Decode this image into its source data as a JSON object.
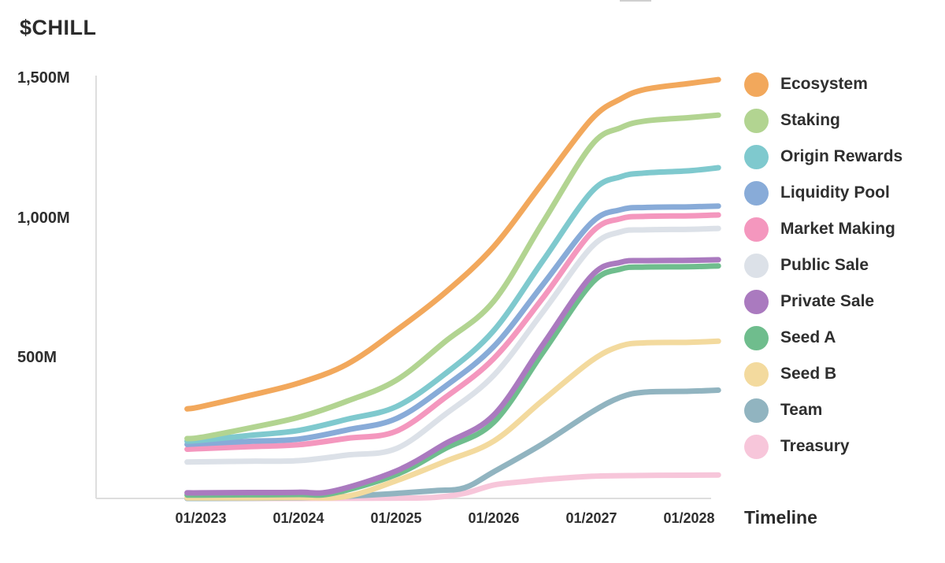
{
  "header": {
    "title": "$CHILL"
  },
  "chart_data": {
    "type": "line",
    "title": "$CHILL",
    "subtitle": "",
    "xlabel": "Timeline",
    "ylabel": "",
    "unit": "millions of tokens",
    "grid": false,
    "legend_position": "right",
    "ylim": [
      0,
      1560
    ],
    "xlim": [
      2022.86,
      2028.3
    ],
    "y_ticks": [
      {
        "value": 1500,
        "label": "1,500M"
      },
      {
        "value": 1000,
        "label": "1,000M"
      },
      {
        "value": 500,
        "label": "500M"
      }
    ],
    "x_ticks": [
      {
        "year": 2023,
        "label": "01/2023"
      },
      {
        "year": 2024,
        "label": "01/2024"
      },
      {
        "year": 2025,
        "label": "01/2025"
      },
      {
        "year": 2026,
        "label": "01/2026"
      },
      {
        "year": 2027,
        "label": "01/2027"
      },
      {
        "year": 2028,
        "label": "01/2028"
      }
    ],
    "series": [
      {
        "name": "Ecosystem",
        "color": "#F2A85C",
        "points": [
          [
            2022.86,
            320
          ],
          [
            2023,
            328
          ],
          [
            2023.5,
            368
          ],
          [
            2024,
            412
          ],
          [
            2024.5,
            480
          ],
          [
            2025,
            600
          ],
          [
            2025.5,
            735
          ],
          [
            2026,
            900
          ],
          [
            2026.5,
            1128
          ],
          [
            2027,
            1355
          ],
          [
            2027.3,
            1428
          ],
          [
            2027.55,
            1462
          ],
          [
            2028,
            1483
          ],
          [
            2028.3,
            1497
          ]
        ]
      },
      {
        "name": "Staking",
        "color": "#B2D491",
        "points": [
          [
            2022.86,
            214
          ],
          [
            2023,
            218
          ],
          [
            2023.5,
            252
          ],
          [
            2024,
            290
          ],
          [
            2024.5,
            348
          ],
          [
            2025,
            422
          ],
          [
            2025.5,
            560
          ],
          [
            2026,
            705
          ],
          [
            2026.5,
            985
          ],
          [
            2027,
            1262
          ],
          [
            2027.3,
            1325
          ],
          [
            2027.55,
            1349
          ],
          [
            2028,
            1361
          ],
          [
            2028.3,
            1370
          ]
        ]
      },
      {
        "name": "Origin Rewards",
        "color": "#7FC9CE",
        "points": [
          [
            2022.86,
            205
          ],
          [
            2023,
            208
          ],
          [
            2023.5,
            225
          ],
          [
            2024,
            243
          ],
          [
            2024.5,
            283
          ],
          [
            2025,
            328
          ],
          [
            2025.5,
            445
          ],
          [
            2026,
            600
          ],
          [
            2026.5,
            848
          ],
          [
            2027,
            1095
          ],
          [
            2027.3,
            1150
          ],
          [
            2027.55,
            1163
          ],
          [
            2028,
            1171
          ],
          [
            2028.3,
            1182
          ]
        ]
      },
      {
        "name": "Liquidity Pool",
        "color": "#88ABD8",
        "points": [
          [
            2022.86,
            193
          ],
          [
            2023,
            196
          ],
          [
            2023.5,
            204
          ],
          [
            2024,
            212
          ],
          [
            2024.5,
            245
          ],
          [
            2025,
            285
          ],
          [
            2025.5,
            400
          ],
          [
            2026,
            543
          ],
          [
            2026.5,
            763
          ],
          [
            2027,
            985
          ],
          [
            2027.3,
            1032
          ],
          [
            2027.55,
            1040
          ],
          [
            2028,
            1042
          ],
          [
            2028.3,
            1045
          ]
        ]
      },
      {
        "name": "Market Making",
        "color": "#F497BE",
        "points": [
          [
            2022.86,
            176
          ],
          [
            2023,
            178
          ],
          [
            2023.5,
            185
          ],
          [
            2024,
            192
          ],
          [
            2024.5,
            215
          ],
          [
            2025,
            240
          ],
          [
            2025.5,
            360
          ],
          [
            2026,
            500
          ],
          [
            2026.5,
            715
          ],
          [
            2027,
            950
          ],
          [
            2027.3,
            1000
          ],
          [
            2027.55,
            1008
          ],
          [
            2028,
            1010
          ],
          [
            2028.3,
            1013
          ]
        ]
      },
      {
        "name": "Public Sale",
        "color": "#DCE1E8",
        "points": [
          [
            2022.86,
            130
          ],
          [
            2023,
            131
          ],
          [
            2023.5,
            133
          ],
          [
            2024,
            135
          ],
          [
            2024.5,
            155
          ],
          [
            2025,
            178
          ],
          [
            2025.5,
            300
          ],
          [
            2026,
            440
          ],
          [
            2026.5,
            665
          ],
          [
            2027,
            898
          ],
          [
            2027.3,
            953
          ],
          [
            2027.55,
            960
          ],
          [
            2028,
            962
          ],
          [
            2028.3,
            965
          ]
        ]
      },
      {
        "name": "Private Sale",
        "color": "#AA7ABF",
        "points": [
          [
            2022.86,
            20
          ],
          [
            2023,
            20
          ],
          [
            2023.5,
            21
          ],
          [
            2024,
            22
          ],
          [
            2024.35,
            26
          ],
          [
            2025,
            98
          ],
          [
            2025.5,
            195
          ],
          [
            2026,
            298
          ],
          [
            2026.5,
            548
          ],
          [
            2027,
            795
          ],
          [
            2027.3,
            844
          ],
          [
            2027.55,
            850
          ],
          [
            2028,
            851
          ],
          [
            2028.3,
            853
          ]
        ]
      },
      {
        "name": "Seed A",
        "color": "#6FBD8D",
        "points": [
          [
            2022.86,
            12
          ],
          [
            2023,
            12
          ],
          [
            2023.5,
            13
          ],
          [
            2024,
            14
          ],
          [
            2024.35,
            18
          ],
          [
            2025,
            85
          ],
          [
            2025.5,
            178
          ],
          [
            2026,
            272
          ],
          [
            2026.5,
            520
          ],
          [
            2027,
            768
          ],
          [
            2027.3,
            820
          ],
          [
            2027.55,
            827
          ],
          [
            2028,
            828
          ],
          [
            2028.3,
            831
          ]
        ]
      },
      {
        "name": "Seed B",
        "color": "#F3DA9E",
        "points": [
          [
            2022.86,
            2
          ],
          [
            2023,
            2
          ],
          [
            2024,
            3
          ],
          [
            2024.5,
            8
          ],
          [
            2025,
            63
          ],
          [
            2025.5,
            132
          ],
          [
            2026,
            205
          ],
          [
            2026.5,
            350
          ],
          [
            2027,
            492
          ],
          [
            2027.3,
            545
          ],
          [
            2027.55,
            556
          ],
          [
            2028,
            558
          ],
          [
            2028.3,
            562
          ]
        ]
      },
      {
        "name": "Team",
        "color": "#91B4C0",
        "points": [
          [
            2022.86,
            0
          ],
          [
            2023,
            0
          ],
          [
            2024,
            2
          ],
          [
            2024.5,
            8
          ],
          [
            2025,
            18
          ],
          [
            2025.4,
            28
          ],
          [
            2025.7,
            38
          ],
          [
            2026,
            95
          ],
          [
            2026.5,
            195
          ],
          [
            2027,
            308
          ],
          [
            2027.3,
            362
          ],
          [
            2027.55,
            380
          ],
          [
            2028,
            383
          ],
          [
            2028.3,
            387
          ]
        ]
      },
      {
        "name": "Treasury",
        "color": "#F7C6DA",
        "points": [
          [
            2022.86,
            0
          ],
          [
            2023,
            0
          ],
          [
            2024,
            0
          ],
          [
            2025,
            1
          ],
          [
            2025.4,
            4
          ],
          [
            2025.7,
            18
          ],
          [
            2026,
            48
          ],
          [
            2026.3,
            60
          ],
          [
            2026.5,
            67
          ],
          [
            2027,
            79
          ],
          [
            2027.5,
            82
          ],
          [
            2028,
            83
          ],
          [
            2028.3,
            84
          ]
        ]
      }
    ]
  }
}
